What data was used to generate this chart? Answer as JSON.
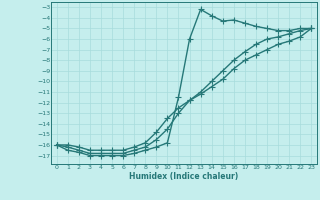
{
  "x": [
    0,
    1,
    2,
    3,
    4,
    5,
    6,
    7,
    8,
    9,
    10,
    11,
    12,
    13,
    14,
    15,
    16,
    17,
    18,
    19,
    20,
    21,
    22,
    23
  ],
  "line1": [
    -16.0,
    -16.5,
    -16.7,
    -17.0,
    -17.0,
    -17.0,
    -17.0,
    -16.8,
    -16.5,
    -16.2,
    -15.8,
    -11.5,
    -6.0,
    -3.2,
    -3.8,
    -4.3,
    -4.2,
    -4.5,
    -4.8,
    -5.0,
    -5.2,
    -5.2,
    -5.0,
    -5.0
  ],
  "line2": [
    -16.0,
    -16.2,
    -16.5,
    -16.8,
    -16.8,
    -16.8,
    -16.8,
    -16.5,
    -16.2,
    -15.5,
    -14.5,
    -13.0,
    -11.8,
    -11.0,
    -10.0,
    -9.0,
    -8.0,
    -7.2,
    -6.5,
    -6.0,
    -5.8,
    -5.5,
    -5.2,
    -5.0
  ],
  "line3": [
    -16.0,
    -16.0,
    -16.2,
    -16.5,
    -16.5,
    -16.5,
    -16.5,
    -16.2,
    -15.8,
    -14.8,
    -13.5,
    -12.5,
    -11.8,
    -11.2,
    -10.5,
    -9.8,
    -8.8,
    -8.0,
    -7.5,
    -7.0,
    -6.5,
    -6.2,
    -5.8,
    -5.0
  ],
  "color": "#267878",
  "bg_color": "#c5eeed",
  "grid_color": "#a8dcdc",
  "xlabel": "Humidex (Indice chaleur)",
  "ylim": [
    -17.8,
    -2.5
  ],
  "xlim": [
    -0.5,
    23.5
  ],
  "yticks": [
    -3,
    -4,
    -5,
    -6,
    -7,
    -8,
    -9,
    -10,
    -11,
    -12,
    -13,
    -14,
    -15,
    -16,
    -17
  ],
  "xticks": [
    0,
    1,
    2,
    3,
    4,
    5,
    6,
    7,
    8,
    9,
    10,
    11,
    12,
    13,
    14,
    15,
    16,
    17,
    18,
    19,
    20,
    21,
    22,
    23
  ],
  "marker": "+",
  "linewidth": 1.0,
  "markersize": 4
}
